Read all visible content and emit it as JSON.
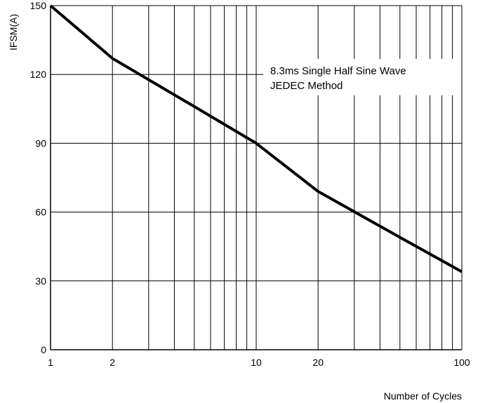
{
  "chart_data": {
    "type": "line",
    "title": "",
    "xlabel": "Number of Cycles",
    "ylabel": "IFSM(A)",
    "xscale": "log",
    "xlim": [
      1,
      100
    ],
    "ylim": [
      0,
      150
    ],
    "grid": true,
    "x_ticks": [
      1,
      2,
      10,
      20,
      100
    ],
    "x_tick_labels": [
      "1",
      "2",
      "10",
      "20",
      "100"
    ],
    "y_ticks": [
      0,
      30,
      60,
      90,
      120,
      150
    ],
    "y_tick_labels": [
      "0",
      "30",
      "60",
      "90",
      "120",
      "150"
    ],
    "annotations": [
      "8.3ms Single Half Sine Wave",
      "JEDEC Method"
    ],
    "series": [
      {
        "x": [
          1,
          2,
          5,
          10,
          20,
          50,
          100
        ],
        "y": [
          150,
          127,
          106,
          90,
          69,
          49,
          34
        ]
      }
    ]
  }
}
